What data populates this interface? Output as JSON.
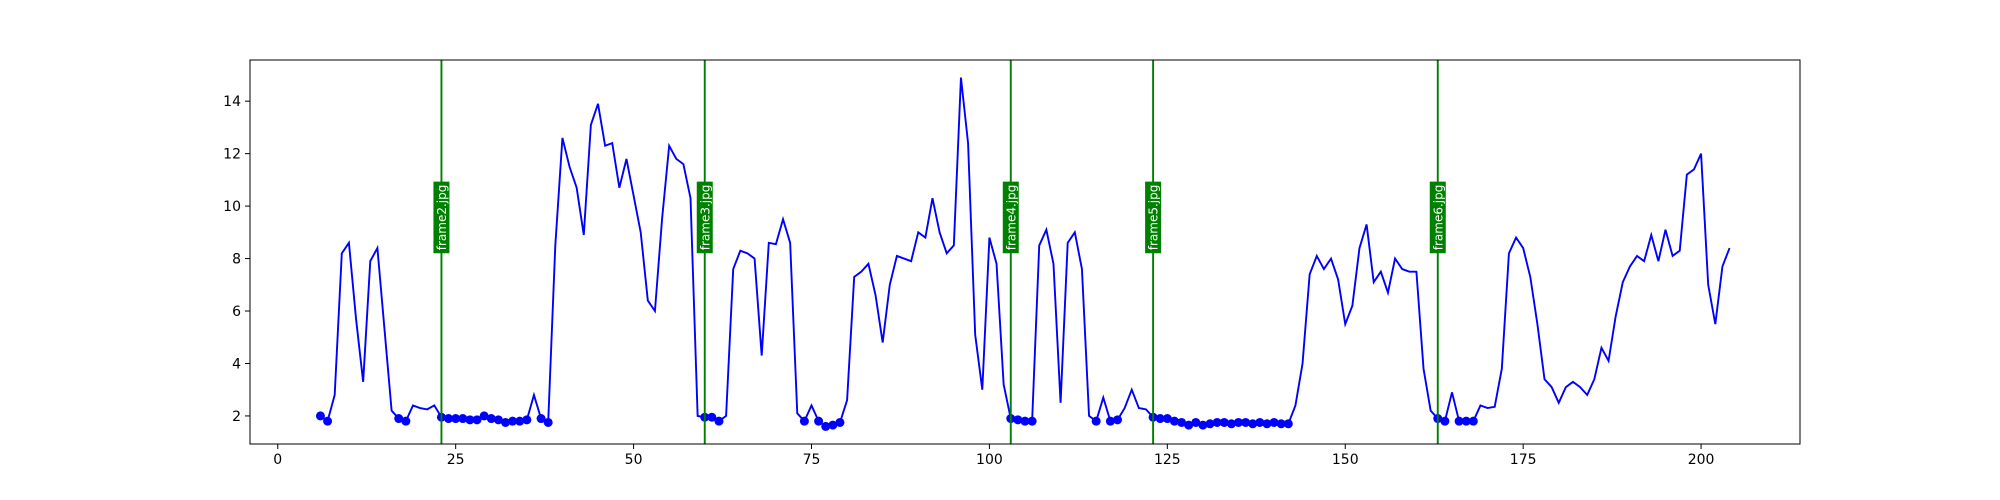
{
  "chart_data": {
    "type": "line",
    "xlim": [
      -3.9,
      213.9
    ],
    "ylim": [
      0.93,
      15.57
    ],
    "xticks": [
      0,
      25,
      50,
      75,
      100,
      125,
      150,
      175,
      200
    ],
    "yticks": [
      2,
      4,
      6,
      8,
      10,
      12,
      14
    ],
    "series": [
      {
        "color": "#0000ff",
        "linestyle": "solid",
        "x": [
          6,
          7,
          8,
          9,
          10,
          11,
          12,
          13,
          14,
          15,
          16,
          17,
          18,
          19,
          20,
          21,
          22,
          23,
          24,
          25,
          26,
          27,
          28,
          29,
          30,
          31,
          32,
          33,
          34,
          35,
          36,
          37,
          38,
          39,
          40,
          41,
          42,
          43,
          44,
          45,
          46,
          47,
          48,
          49,
          50,
          51,
          52,
          53,
          54,
          55,
          56,
          57,
          58,
          59,
          60,
          61,
          62,
          63,
          64,
          65,
          66,
          67,
          68,
          69,
          70,
          71,
          72,
          73,
          74,
          75,
          76,
          77,
          78,
          79,
          80,
          81,
          82,
          83,
          84,
          85,
          86,
          87,
          88,
          89,
          90,
          91,
          92,
          93,
          94,
          95,
          96,
          97,
          98,
          99,
          100,
          101,
          102,
          103,
          104,
          105,
          106,
          107,
          108,
          109,
          110,
          111,
          112,
          113,
          114,
          115,
          116,
          117,
          118,
          119,
          120,
          121,
          122,
          123,
          124,
          125,
          126,
          127,
          128,
          129,
          130,
          131,
          132,
          133,
          134,
          135,
          136,
          137,
          138,
          139,
          140,
          141,
          142,
          143,
          144,
          145,
          146,
          147,
          148,
          149,
          150,
          151,
          152,
          153,
          154,
          155,
          156,
          157,
          158,
          159,
          160,
          161,
          162,
          163,
          164,
          165,
          166,
          167,
          168,
          169,
          170,
          171,
          172,
          173,
          174,
          175,
          176,
          177,
          178,
          179,
          180,
          181,
          182,
          183,
          184,
          185,
          186,
          187,
          188,
          189,
          190,
          191,
          192,
          193,
          194,
          195,
          196,
          197,
          198,
          199,
          200,
          201,
          202,
          203,
          204
        ],
        "values": [
          2.0,
          1.8,
          2.8,
          8.2,
          8.6,
          5.7,
          3.3,
          7.9,
          8.4,
          5.3,
          2.2,
          1.9,
          1.8,
          2.4,
          2.3,
          2.25,
          2.4,
          1.95,
          1.9,
          1.9,
          1.9,
          1.85,
          1.85,
          2.0,
          1.9,
          1.85,
          1.75,
          1.8,
          1.8,
          1.85,
          2.8,
          1.9,
          1.75,
          8.5,
          12.6,
          11.5,
          10.7,
          8.9,
          13.1,
          13.9,
          12.3,
          12.4,
          10.7,
          11.8,
          10.4,
          9.0,
          6.4,
          6.0,
          9.5,
          12.3,
          11.8,
          11.6,
          10.3,
          2.0,
          1.95,
          1.95,
          1.8,
          2.0,
          7.6,
          8.3,
          8.2,
          8.0,
          4.3,
          8.6,
          8.55,
          9.5,
          8.6,
          2.1,
          1.8,
          2.4,
          1.8,
          1.6,
          1.65,
          1.75,
          2.6,
          7.3,
          7.5,
          7.8,
          6.6,
          4.8,
          7.0,
          8.1,
          8.0,
          7.9,
          9.0,
          8.8,
          10.3,
          9.0,
          8.2,
          8.5,
          14.9,
          12.4,
          5.1,
          3.0,
          8.8,
          7.8,
          3.2,
          1.9,
          1.85,
          1.8,
          1.8,
          8.5,
          9.1,
          7.8,
          2.5,
          8.6,
          9.0,
          7.6,
          2.0,
          1.8,
          2.7,
          1.8,
          1.85,
          2.3,
          3.0,
          2.3,
          2.25,
          1.95,
          1.9,
          1.9,
          1.8,
          1.75,
          1.65,
          1.75,
          1.65,
          1.7,
          1.75,
          1.75,
          1.7,
          1.75,
          1.75,
          1.7,
          1.75,
          1.7,
          1.75,
          1.7,
          1.7,
          2.4,
          4.0,
          7.4,
          8.1,
          7.6,
          8.0,
          7.2,
          5.5,
          6.2,
          8.4,
          9.3,
          7.1,
          7.5,
          6.7,
          8.0,
          7.6,
          7.5,
          7.5,
          3.8,
          2.2,
          1.9,
          1.8,
          2.9,
          1.8,
          1.8,
          1.8,
          2.4,
          2.3,
          2.35,
          3.8,
          8.2,
          8.8,
          8.4,
          7.3,
          5.5,
          3.4,
          3.1,
          2.5,
          3.1,
          3.3,
          3.1,
          2.8,
          3.4,
          4.6,
          4.1,
          5.8,
          7.1,
          7.7,
          8.1,
          7.9,
          8.9,
          7.9,
          9.1,
          8.1,
          8.3,
          11.2,
          11.4,
          12.0,
          7.0,
          5.5,
          7.7,
          8.4
        ]
      },
      {
        "color": "#0000ff",
        "linestyle": "none",
        "marker": "o",
        "x": [
          6,
          7,
          17,
          18,
          23,
          24,
          25,
          26,
          27,
          28,
          29,
          30,
          31,
          32,
          33,
          34,
          35,
          37,
          38,
          60,
          61,
          62,
          74,
          76,
          77,
          78,
          79,
          103,
          104,
          105,
          106,
          115,
          117,
          118,
          123,
          124,
          125,
          126,
          127,
          128,
          129,
          130,
          131,
          132,
          133,
          134,
          135,
          136,
          137,
          138,
          139,
          140,
          141,
          142,
          163,
          164,
          166,
          167,
          168
        ],
        "values": [
          2.0,
          1.8,
          1.9,
          1.8,
          1.95,
          1.9,
          1.9,
          1.9,
          1.85,
          1.85,
          2.0,
          1.9,
          1.85,
          1.75,
          1.8,
          1.8,
          1.85,
          1.9,
          1.75,
          1.95,
          1.95,
          1.8,
          1.8,
          1.8,
          1.6,
          1.65,
          1.75,
          1.9,
          1.85,
          1.8,
          1.8,
          1.8,
          1.8,
          1.85,
          1.95,
          1.9,
          1.9,
          1.8,
          1.75,
          1.65,
          1.75,
          1.65,
          1.7,
          1.75,
          1.75,
          1.7,
          1.75,
          1.75,
          1.7,
          1.75,
          1.7,
          1.75,
          1.7,
          1.7,
          1.9,
          1.8,
          1.8,
          1.8,
          1.8
        ]
      }
    ],
    "vlines": [
      {
        "x": 23,
        "label": "frame2.jpg",
        "color": "#008000"
      },
      {
        "x": 60,
        "label": "frame3.jpg",
        "color": "#008000"
      },
      {
        "x": 103,
        "label": "frame4.jpg",
        "color": "#008000"
      },
      {
        "x": 123,
        "label": "frame5.jpg",
        "color": "#008000"
      },
      {
        "x": 163,
        "label": "frame6.jpg",
        "color": "#008000"
      }
    ]
  }
}
